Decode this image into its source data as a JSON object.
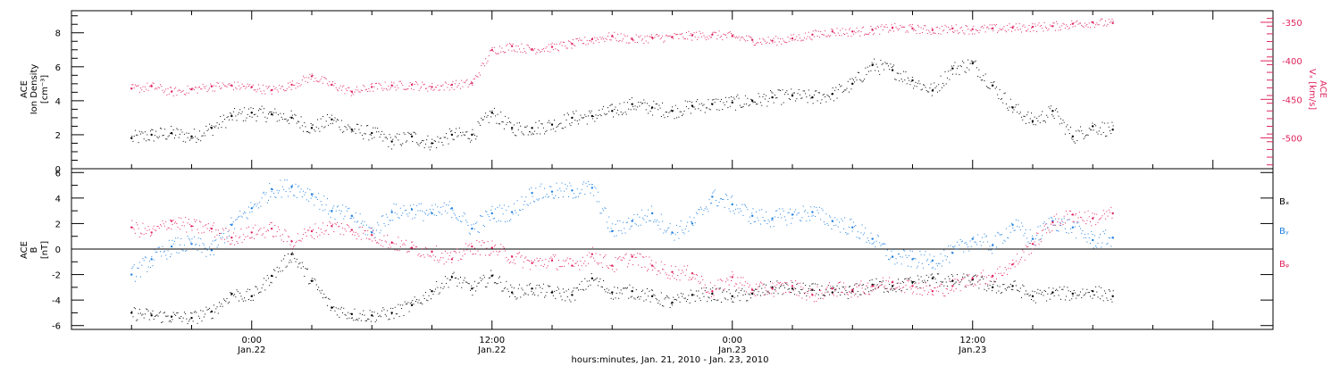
{
  "colors": {
    "pink": "#e0245e",
    "blue": "#1f7fe0",
    "black": "#000000"
  },
  "chart_data": [
    {
      "type": "scatter",
      "panel": "top",
      "ylabel_line1": "ACE",
      "ylabel_line2": "Ion Density",
      "ylabel_unit": "[cm⁻³]",
      "ylim": [
        0,
        9.3
      ],
      "yticks": [
        0,
        2,
        4,
        6,
        8
      ],
      "right_ylabel_line1": "ACE",
      "right_ylabel_line2": "Vₓ [km/s]",
      "right_ylim": [
        -540,
        -335
      ],
      "right_yticks": [
        -500,
        -450,
        -400,
        -350
      ],
      "series": [
        {
          "key": "density",
          "axis": "left",
          "x": [
            -6,
            -5,
            -4,
            -3,
            -2,
            -1,
            0,
            1,
            2,
            3,
            4,
            5,
            6,
            7,
            8,
            9,
            10,
            11,
            12,
            13,
            14,
            15,
            16,
            17,
            18,
            19,
            20,
            21,
            22,
            23,
            24,
            25,
            26,
            27,
            28,
            29,
            30,
            31,
            32,
            33,
            34,
            35,
            36,
            37,
            38,
            39,
            40,
            41,
            42,
            43
          ],
          "y": [
            1.8,
            2.0,
            2.1,
            1.9,
            2.4,
            3.1,
            3.3,
            3.2,
            3.0,
            2.4,
            2.9,
            2.3,
            2.1,
            1.6,
            1.9,
            1.5,
            2.0,
            2.0,
            3.3,
            2.4,
            2.4,
            2.6,
            3.0,
            3.1,
            3.4,
            3.8,
            3.6,
            3.4,
            3.7,
            3.8,
            3.9,
            4.0,
            4.2,
            4.3,
            4.2,
            4.4,
            5.0,
            6.1,
            5.8,
            5.2,
            4.6,
            5.9,
            6.2,
            4.9,
            3.6,
            2.8,
            3.4,
            1.9,
            2.5,
            2.3
          ]
        },
        {
          "key": "vx",
          "axis": "right",
          "x": [
            -6,
            -5,
            -4,
            -3,
            -2,
            -1,
            0,
            1,
            2,
            3,
            4,
            5,
            6,
            7,
            8,
            9,
            10,
            11,
            12,
            13,
            14,
            15,
            16,
            17,
            18,
            19,
            20,
            21,
            22,
            23,
            24,
            25,
            26,
            27,
            28,
            29,
            30,
            31,
            32,
            33,
            34,
            35,
            36,
            37,
            38,
            39,
            40,
            41,
            42,
            43
          ],
          "y": [
            -436,
            -433,
            -440,
            -437,
            -433,
            -432,
            -434,
            -438,
            -431,
            -420,
            -431,
            -440,
            -434,
            -432,
            -431,
            -434,
            -431,
            -429,
            -386,
            -381,
            -385,
            -382,
            -378,
            -372,
            -368,
            -372,
            -370,
            -369,
            -367,
            -366,
            -368,
            -373,
            -374,
            -371,
            -366,
            -362,
            -362,
            -360,
            -357,
            -358,
            -360,
            -358,
            -359,
            -358,
            -357,
            -356,
            -355,
            -352,
            -350,
            -351
          ]
        }
      ]
    },
    {
      "type": "scatter",
      "panel": "bottom",
      "ylabel_line1": "ACE",
      "ylabel_line2": "B",
      "ylabel_unit": "[nT]",
      "ylim": [
        -6.3,
        6.3
      ],
      "yticks": [
        -6,
        -4,
        -2,
        0,
        2,
        4,
        6
      ],
      "series": [
        {
          "key": "bx",
          "name": "Bₓ",
          "x": [
            -6,
            -5,
            -4,
            -3,
            -2,
            -1,
            0,
            1,
            2,
            3,
            4,
            5,
            6,
            7,
            8,
            9,
            10,
            11,
            12,
            13,
            14,
            15,
            16,
            17,
            18,
            19,
            20,
            21,
            22,
            23,
            24,
            25,
            26,
            27,
            28,
            29,
            30,
            31,
            32,
            33,
            34,
            35,
            36,
            37,
            38,
            39,
            40,
            41,
            42,
            43
          ],
          "y": [
            -5.0,
            -5.2,
            -5.3,
            -5.4,
            -4.9,
            -3.5,
            -3.7,
            -2.1,
            -0.4,
            -2.5,
            -4.6,
            -5.1,
            -5.2,
            -5.0,
            -4.4,
            -3.3,
            -2.2,
            -3.1,
            -2.1,
            -3.4,
            -3.1,
            -3.4,
            -3.6,
            -2.3,
            -3.4,
            -3.3,
            -3.7,
            -4.2,
            -3.6,
            -3.5,
            -3.7,
            -3.5,
            -3.0,
            -3.1,
            -3.2,
            -3.4,
            -3.3,
            -2.8,
            -2.9,
            -2.6,
            -2.3,
            -2.5,
            -2.4,
            -3.0,
            -2.9,
            -3.7,
            -3.4,
            -3.5,
            -3.3,
            -3.7
          ]
        },
        {
          "key": "by",
          "name": "Bᵧ",
          "x": [
            -6,
            -5,
            -4,
            -3,
            -2,
            -1,
            0,
            1,
            2,
            3,
            4,
            5,
            6,
            7,
            8,
            9,
            10,
            11,
            12,
            13,
            14,
            15,
            16,
            17,
            18,
            19,
            20,
            21,
            22,
            23,
            24,
            25,
            26,
            27,
            28,
            29,
            30,
            31,
            32,
            33,
            34,
            35,
            36,
            37,
            38,
            39,
            40,
            41,
            42,
            43
          ],
          "y": [
            -2.0,
            -0.8,
            0.2,
            0.4,
            -0.1,
            1.9,
            3.2,
            4.7,
            4.9,
            4.3,
            3.0,
            2.6,
            1.3,
            2.9,
            3.1,
            2.8,
            3.2,
            1.6,
            2.8,
            2.9,
            4.4,
            4.5,
            4.6,
            4.8,
            1.4,
            2.2,
            2.8,
            1.3,
            2.0,
            4.1,
            3.5,
            2.6,
            2.4,
            2.7,
            2.9,
            2.2,
            1.7,
            0.8,
            -0.6,
            -0.8,
            -0.9,
            -0.3,
            0.8,
            0.3,
            1.9,
            0.8,
            2.2,
            1.7,
            0.7,
            0.9
          ]
        },
        {
          "key": "bz",
          "name": "Bᵩ",
          "x": [
            -6,
            -5,
            -4,
            -3,
            -2,
            -1,
            0,
            1,
            2,
            3,
            4,
            5,
            6,
            7,
            8,
            9,
            10,
            11,
            12,
            13,
            14,
            15,
            16,
            17,
            18,
            19,
            20,
            21,
            22,
            23,
            24,
            25,
            26,
            27,
            28,
            29,
            30,
            31,
            32,
            33,
            34,
            35,
            36,
            37,
            38,
            39,
            40,
            41,
            42,
            43
          ],
          "y": [
            1.7,
            1.3,
            2.2,
            1.8,
            1.6,
            0.9,
            1.3,
            1.6,
            0.6,
            1.4,
            1.8,
            1.5,
            1.1,
            0.5,
            0.1,
            -0.2,
            -0.8,
            0.2,
            0.1,
            -0.6,
            -1.1,
            -0.9,
            -1.3,
            -0.4,
            -1.3,
            -0.6,
            -1.3,
            -1.8,
            -1.9,
            -3.3,
            -2.2,
            -3.2,
            -3.1,
            -2.9,
            -3.6,
            -3.1,
            -3.2,
            -2.9,
            -2.6,
            -2.9,
            -3.3,
            -2.9,
            -2.3,
            -2.1,
            -1.2,
            0.4,
            2.1,
            2.7,
            2.4,
            2.8
          ]
        }
      ]
    }
  ],
  "xaxis": {
    "xlim": [
      -9,
      51
    ],
    "ticks": [
      {
        "x": 0,
        "time": "0:00",
        "date": "Jan.22"
      },
      {
        "x": 12,
        "time": "12:00",
        "date": "Jan.22"
      },
      {
        "x": 24,
        "time": "0:00",
        "date": "Jan.23"
      },
      {
        "x": 36,
        "time": "12:00",
        "date": "Jan.23"
      }
    ],
    "title": "hours:minutes, Jan. 21, 2010 - Jan. 23, 2010"
  }
}
